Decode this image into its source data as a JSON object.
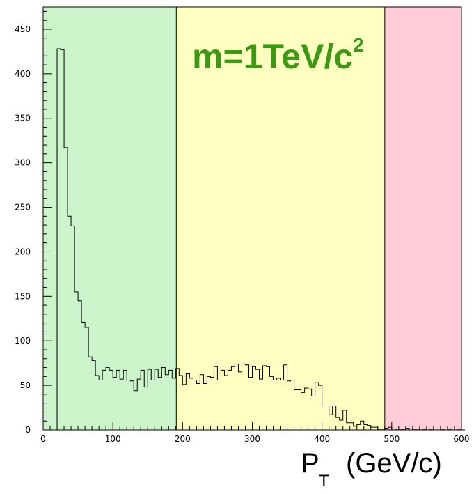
{
  "chart_data": {
    "type": "bar",
    "subtype": "histogram-step",
    "xlabel": "P",
    "xlabel_subscript": "T",
    "xlabel_unit": "(GeV/c)",
    "annotation": {
      "text": "m=1TeV/c",
      "superscript": "2",
      "color": "#3b9a12"
    },
    "xlim": [
      0,
      600
    ],
    "ylim": [
      0,
      475
    ],
    "x_ticks": [
      "0",
      "100",
      "200",
      "300",
      "400",
      "500",
      "600"
    ],
    "y_ticks": [
      "0",
      "50",
      "100",
      "150",
      "200",
      "250",
      "300",
      "350",
      "400",
      "450"
    ],
    "grid": false,
    "regions": [
      {
        "x0": 0,
        "x1": 191,
        "color": "#ccf5cc"
      },
      {
        "x0": 191,
        "x1": 490,
        "color": "#ffffc2"
      },
      {
        "x0": 490,
        "x1": 600,
        "color": "#ffccd8"
      }
    ],
    "bin_width": 5,
    "bin_start": 20,
    "values": [
      428,
      427,
      317,
      240,
      229,
      155,
      145,
      121,
      115,
      82,
      78,
      61,
      56,
      67,
      70,
      67,
      59,
      67,
      57,
      67,
      56,
      55,
      44,
      57,
      67,
      48,
      68,
      56,
      68,
      59,
      70,
      62,
      67,
      58,
      69,
      61,
      51,
      63,
      58,
      56,
      52,
      62,
      52,
      60,
      59,
      71,
      56,
      67,
      61,
      67,
      71,
      74,
      65,
      74,
      73,
      59,
      71,
      68,
      57,
      72,
      71,
      60,
      56,
      58,
      56,
      73,
      55,
      56,
      45,
      45,
      42,
      47,
      46,
      38,
      53,
      50,
      27,
      27,
      17,
      27,
      14,
      11,
      22,
      8,
      8,
      4,
      6,
      10,
      6,
      5,
      3,
      3,
      1,
      1,
      2,
      3,
      0,
      1,
      1,
      1,
      2,
      0,
      1,
      1,
      0,
      1,
      0,
      1,
      0,
      0,
      1,
      0,
      1,
      0,
      0,
      1,
      0
    ]
  }
}
